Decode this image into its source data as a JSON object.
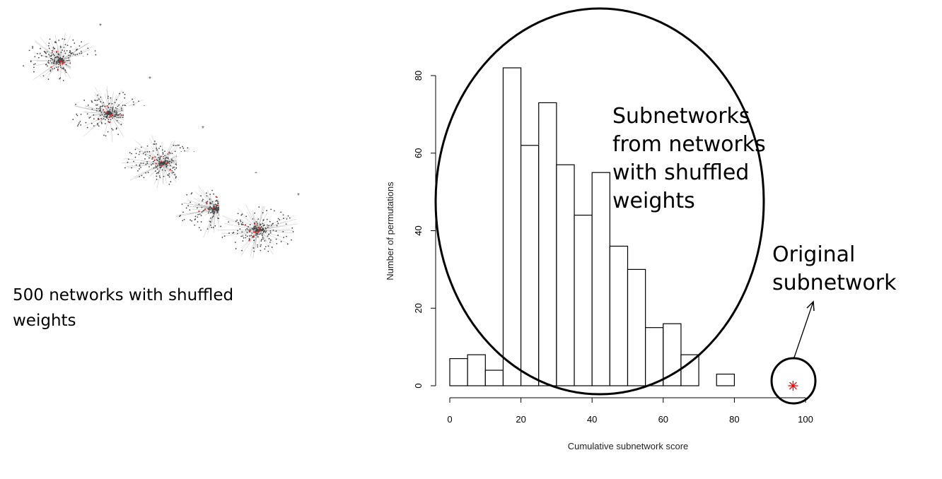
{
  "left_panel": {
    "caption": "500 networks with shuffled weights",
    "thumbnail_count": 5
  },
  "annotations": {
    "shuffled_label": [
      "Subnetworks",
      "from networks",
      "with shuffled",
      "weights"
    ],
    "original_label": [
      "Original",
      "subnetwork"
    ]
  },
  "chart_data": {
    "type": "bar",
    "xlabel": "Cumulative subnetwork score",
    "ylabel": "Number of permutations",
    "xlim": [
      0,
      100
    ],
    "ylim": [
      0,
      80
    ],
    "xticks": [
      0,
      20,
      40,
      60,
      80,
      100
    ],
    "yticks": [
      0,
      20,
      40,
      60,
      80
    ],
    "bin_width": 5,
    "bin_starts": [
      0,
      5,
      10,
      15,
      20,
      25,
      30,
      35,
      40,
      45,
      50,
      55,
      60,
      65,
      70,
      75
    ],
    "values": [
      7,
      8,
      4,
      82,
      62,
      73,
      57,
      44,
      55,
      36,
      30,
      15,
      16,
      8,
      0,
      3
    ],
    "original_point": {
      "x": 96.5,
      "y": 0,
      "marker": "asterisk",
      "color": "#ff0000"
    },
    "grid": false
  }
}
